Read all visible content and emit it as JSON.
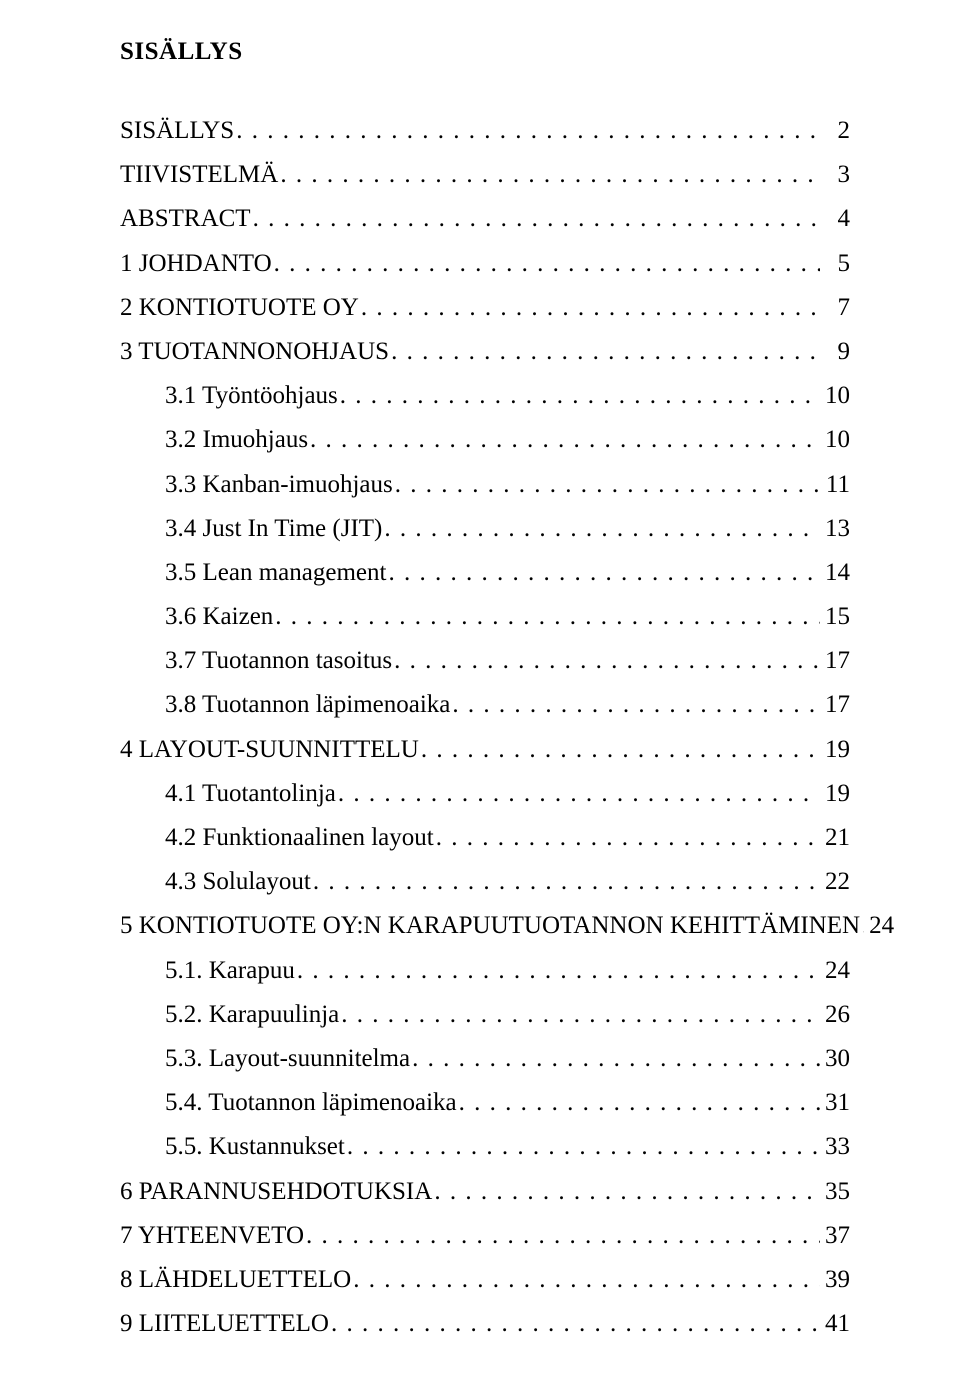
{
  "title": "SISÄLLYS",
  "font": {
    "family": "Times New Roman",
    "title_size_pt": 18,
    "body_size_pt": 18
  },
  "colors": {
    "text": "#000000",
    "background": "#ffffff"
  },
  "toc": [
    {
      "label": "SISÄLLYS",
      "page": "2",
      "level": 0
    },
    {
      "label": "TIIVISTELMÄ",
      "page": "3",
      "level": 0
    },
    {
      "label": "ABSTRACT",
      "page": "4",
      "level": 0
    },
    {
      "label": "1 JOHDANTO",
      "page": "5",
      "level": 0
    },
    {
      "label": "2 KONTIOTUOTE OY",
      "page": "7",
      "level": 0
    },
    {
      "label": "3 TUOTANNONOHJAUS",
      "page": "9",
      "level": 0
    },
    {
      "label": "3.1 Työntöohjaus",
      "page": "10",
      "level": 1
    },
    {
      "label": "3.2 Imuohjaus",
      "page": "10",
      "level": 1
    },
    {
      "label": "3.3 Kanban-imuohjaus",
      "page": "11",
      "level": 1
    },
    {
      "label": "3.4 Just In Time (JIT)",
      "page": "13",
      "level": 1
    },
    {
      "label": "3.5 Lean management",
      "page": "14",
      "level": 1
    },
    {
      "label": "3.6 Kaizen",
      "page": "15",
      "level": 1
    },
    {
      "label": "3.7 Tuotannon tasoitus",
      "page": "17",
      "level": 1
    },
    {
      "label": "3.8 Tuotannon läpimenoaika",
      "page": "17",
      "level": 1
    },
    {
      "label": "4 LAYOUT-SUUNNITTELU",
      "page": "19",
      "level": 0
    },
    {
      "label": "4.1 Tuotantolinja",
      "page": "19",
      "level": 1
    },
    {
      "label": "4.2 Funktionaalinen layout",
      "page": "21",
      "level": 1
    },
    {
      "label": "4.3 Solulayout",
      "page": "22",
      "level": 1
    },
    {
      "label": "5 KONTIOTUOTE OY:N KARAPUUTUOTANNON KEHITTÄMINEN",
      "page": "24",
      "level": 0
    },
    {
      "label": "5.1. Karapuu",
      "page": "24",
      "level": 1
    },
    {
      "label": "5.2. Karapuulinja",
      "page": "26",
      "level": 1
    },
    {
      "label": "5.3. Layout-suunnitelma",
      "page": "30",
      "level": 1
    },
    {
      "label": "5.4. Tuotannon läpimenoaika",
      "page": "31",
      "level": 1
    },
    {
      "label": "5.5. Kustannukset",
      "page": "33",
      "level": 1
    },
    {
      "label": "6 PARANNUSEHDOTUKSIA",
      "page": "35",
      "level": 0
    },
    {
      "label": "7 YHTEENVETO",
      "page": "37",
      "level": 0
    },
    {
      "label": "8 LÄHDELUETTELO",
      "page": "39",
      "level": 0
    },
    {
      "label": "9 LIITELUETTELO",
      "page": "41",
      "level": 0
    }
  ]
}
